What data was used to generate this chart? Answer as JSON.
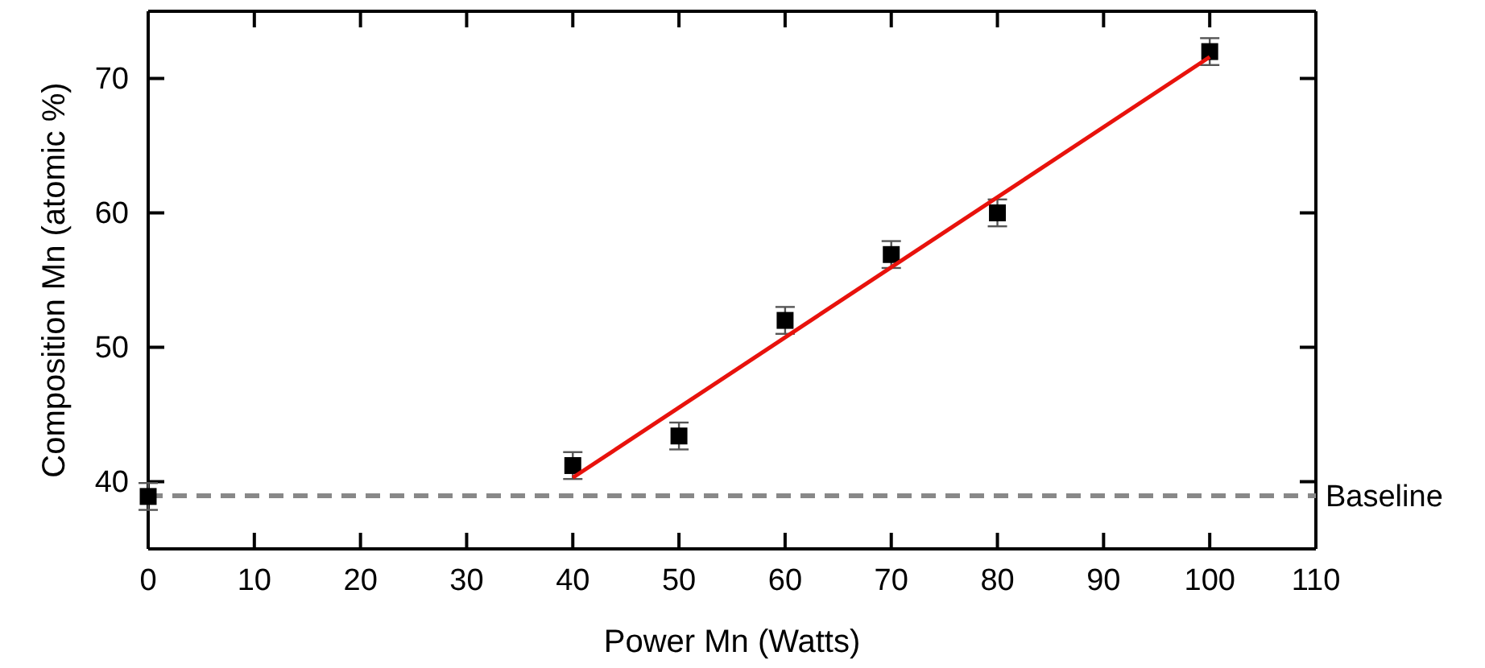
{
  "chart_data": {
    "type": "scatter",
    "xlabel": "Power Mn (Watts)",
    "ylabel": "Composition Mn (atomic %)",
    "xlim": [
      0,
      110
    ],
    "ylim": [
      35,
      75
    ],
    "xticks": [
      0,
      10,
      20,
      30,
      40,
      50,
      60,
      70,
      80,
      90,
      100,
      110
    ],
    "yticks": [
      {
        "value": 35,
        "label": null
      },
      40,
      50,
      60,
      70
    ],
    "grid": false,
    "series": [
      {
        "color": "#000000",
        "marker": "square",
        "x": [
          0,
          40,
          50,
          60,
          70,
          80,
          100
        ],
        "values": [
          38.9,
          41.2,
          43.4,
          52,
          56.9,
          60,
          72
        ],
        "errors": [
          1,
          1,
          1,
          1,
          1,
          1,
          1
        ]
      },
      {
        "type": "line",
        "color": "#e8120c",
        "marker": "none",
        "line_style": "solid",
        "x": [
          40,
          100
        ],
        "values": [
          40.3,
          71.6
        ]
      }
    ],
    "ref_lines": [
      {
        "axis": "y",
        "value": 38.95,
        "label": "Baseline",
        "color": "#888888",
        "line_style": "dashed"
      }
    ]
  }
}
